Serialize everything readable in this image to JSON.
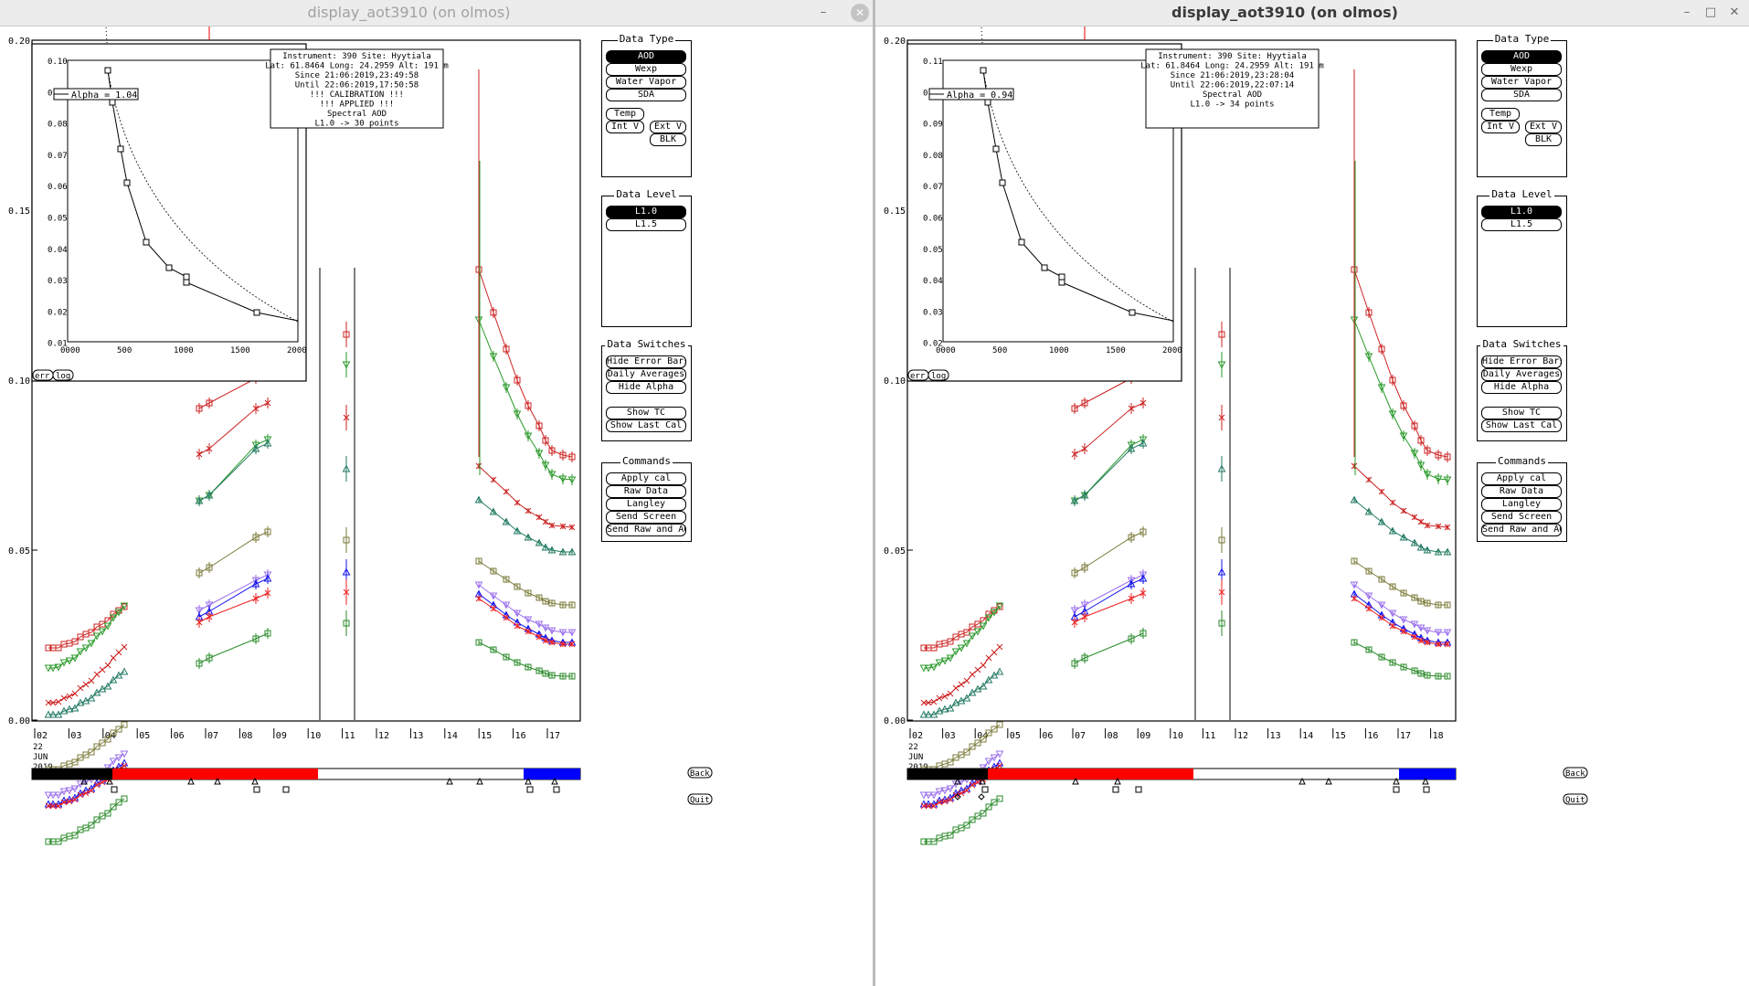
{
  "windows": [
    {
      "title": "display_aot3910 (on olmos)",
      "active": false,
      "info": [
        "Instrument: 390 Site: Hyytiala",
        "Lat: 61.8464 Long: 24.2959 Alt: 191 m",
        "Since 21:06:2019,23:49:58",
        "Until 22:06:2019,17:50:58",
        "!!! CALIBRATION !!!",
        "!!!   APPLIED   !!!",
        "Spectral AOD",
        "L1.0 -> 30 points"
      ],
      "alpha_label": "Alpha = 1.04",
      "inset_yticks": [
        "0.10",
        "0",
        "0.08",
        "0.07",
        "0.06",
        "0.05",
        "0.04",
        "0.03",
        "0.02",
        "0.01"
      ],
      "bottom_markers": {
        "triangles": [
          [
            92,
            855
          ],
          [
            120,
            855
          ],
          [
            209,
            855
          ],
          [
            238,
            855
          ],
          [
            279,
            855
          ],
          [
            492,
            855
          ],
          [
            525,
            855
          ],
          [
            578,
            855
          ],
          [
            607,
            855
          ]
        ],
        "squares": [
          [
            125,
            864
          ],
          [
            281,
            864
          ],
          [
            313,
            864
          ],
          [
            580,
            864
          ],
          [
            609,
            864
          ]
        ],
        "diamonds": []
      }
    },
    {
      "title": "display_aot3910 (on olmos)",
      "active": true,
      "info": [
        "Instrument: 390 Site: Hyytiala",
        "Lat: 61.8464 Long: 24.2959 Alt: 191 m",
        "Since 21:06:2019,23:28:04",
        "Until 22:06:2019,22:07:14",
        "Spectral AOD",
        "L1.0 -> 34 points"
      ],
      "alpha_label": "Alpha = 0.94",
      "inset_yticks": [
        "0.11",
        "0",
        "0.09",
        "0.08",
        "0.07",
        "0.06",
        "0.05",
        "0.04",
        "0.03",
        "0.02"
      ],
      "bottom_markers": {
        "triangles": [
          [
            877,
            855
          ],
          [
            904,
            855
          ],
          [
            1006,
            855
          ],
          [
            1052,
            855
          ],
          [
            1254,
            855
          ],
          [
            1283,
            855
          ],
          [
            1357,
            855
          ],
          [
            1389,
            855
          ]
        ],
        "squares": [
          [
            907,
            864
          ],
          [
            1050,
            864
          ],
          [
            1075,
            864
          ],
          [
            1357,
            864
          ],
          [
            1390,
            864
          ]
        ],
        "diamonds": [
          [
            877,
            872
          ],
          [
            903,
            872
          ]
        ]
      }
    }
  ],
  "main_yticks": [
    "0.20",
    "0.15",
    "0.10",
    "0.05",
    "0.00"
  ],
  "inset_xticks": [
    "0000",
    "500",
    "1000",
    "1500",
    "2000"
  ],
  "xticks": [
    "02",
    "03",
    "04",
    "05",
    "06",
    "07",
    "08",
    "09",
    "10",
    "11",
    "12",
    "13",
    "14",
    "15",
    "16",
    "17"
  ],
  "xticks_b": [
    "02",
    "03",
    "04",
    "05",
    "06",
    "07",
    "08",
    "09",
    "10",
    "11",
    "12",
    "13",
    "14",
    "15",
    "16",
    "17",
    "18"
  ],
  "date_label": [
    "22",
    "JUN",
    "2019"
  ],
  "err_label": "err",
  "log_label": "log",
  "back_label": "Back",
  "quit_label": "Quit",
  "panels": {
    "data_type": {
      "title": "Data Type",
      "buttons": [
        "AOD",
        "Wexp",
        "Water Vapor",
        "SDA",
        "Temp",
        "Int V",
        "Ext V",
        "BLK"
      ]
    },
    "data_level": {
      "title": "Data Level",
      "buttons": [
        "L1.0",
        "L1.5"
      ]
    },
    "data_switches": {
      "title": "Data Switches",
      "buttons": [
        "Hide Error Bars",
        "Daily Averages",
        "Hide Alpha",
        "Show TC",
        "Show Last Cal"
      ]
    },
    "commands": {
      "title": "Commands",
      "buttons": [
        "Apply cal",
        "Raw Data",
        "Langley",
        "Send Screen",
        "Send Raw and AOD"
      ]
    }
  },
  "colors": {
    "red": "#cc2222",
    "green": "#2a9a2a",
    "teal": "#227a62",
    "olive": "#7a7a3a",
    "blue": "#1010ee",
    "violet": "#9a70ee",
    "brightred": "#ee2222",
    "dkgreen": "#2a8a2a",
    "bar_black": "#000000",
    "bar_red": "#ff0000",
    "bar_blue": "#0000ff"
  }
}
